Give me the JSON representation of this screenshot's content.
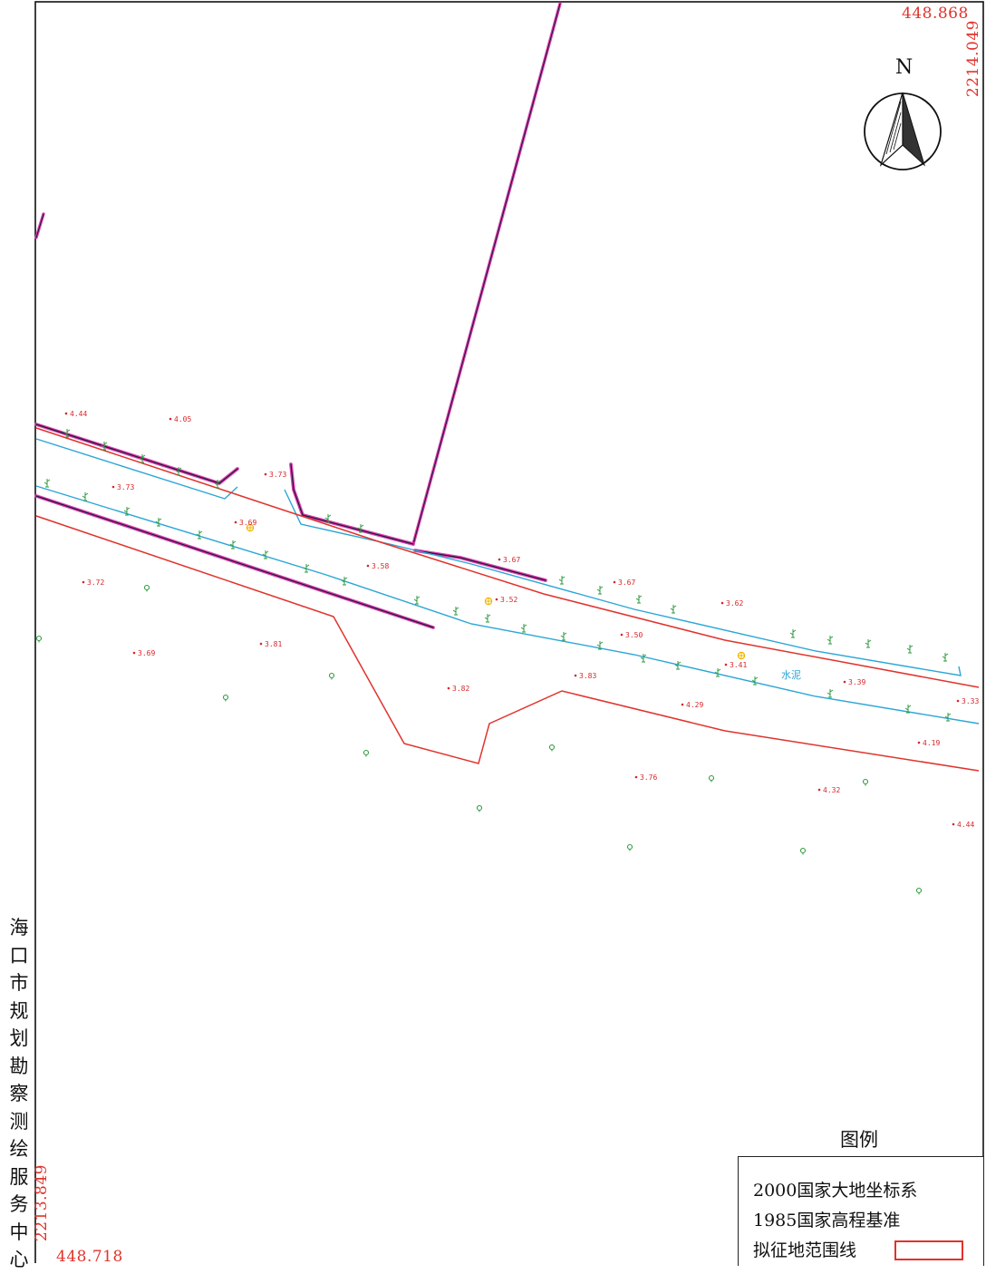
{
  "corners": {
    "top_right_x": "448.868",
    "top_right_y": "2214.049",
    "bottom_left_x": "448.718",
    "bottom_left_y": "2213.849"
  },
  "north_label": "N",
  "side_title_chars": [
    "海",
    "口",
    "市",
    "规",
    "划",
    "勘",
    "察",
    "测",
    "绘",
    "服",
    "务",
    "中",
    "心"
  ],
  "legend": {
    "title": "图例",
    "coord_system": "2000国家大地坐标系",
    "height_datum": "1985国家高程基准",
    "boundary_label": "拟征地范围线"
  },
  "surface_label": "水泥",
  "elevations": [
    {
      "id": "e1",
      "v": "4.44"
    },
    {
      "id": "e2",
      "v": "4.05"
    },
    {
      "id": "e3",
      "v": "3.73"
    },
    {
      "id": "e4",
      "v": "3.73"
    },
    {
      "id": "e5",
      "v": "3.69"
    },
    {
      "id": "e6",
      "v": "3.72"
    },
    {
      "id": "e7",
      "v": "3.58"
    },
    {
      "id": "e8",
      "v": "3.67"
    },
    {
      "id": "e9",
      "v": "3.52"
    },
    {
      "id": "e10",
      "v": "3.67"
    },
    {
      "id": "e11",
      "v": "3.62"
    },
    {
      "id": "e12",
      "v": "3.69"
    },
    {
      "id": "e13",
      "v": "3.81"
    },
    {
      "id": "e14",
      "v": "3.50"
    },
    {
      "id": "e15",
      "v": "3.41"
    },
    {
      "id": "e16",
      "v": "3.83"
    },
    {
      "id": "e17",
      "v": "3.39"
    },
    {
      "id": "e18",
      "v": "3.82"
    },
    {
      "id": "e19",
      "v": "4.29"
    },
    {
      "id": "e20",
      "v": "3.33"
    },
    {
      "id": "e21",
      "v": "4.19"
    },
    {
      "id": "e22",
      "v": "3.76"
    },
    {
      "id": "e23",
      "v": "4.32"
    },
    {
      "id": "e24",
      "v": "4.44"
    }
  ],
  "colors": {
    "boundary": "#e0332c",
    "road_edge": "#2aa6d6",
    "wall_outer": "#e23fb0",
    "wall_inner": "#1a1a3a",
    "vegetation": "#2e9a3c",
    "elevation": "#d8262a",
    "marker": "#f0b400"
  }
}
